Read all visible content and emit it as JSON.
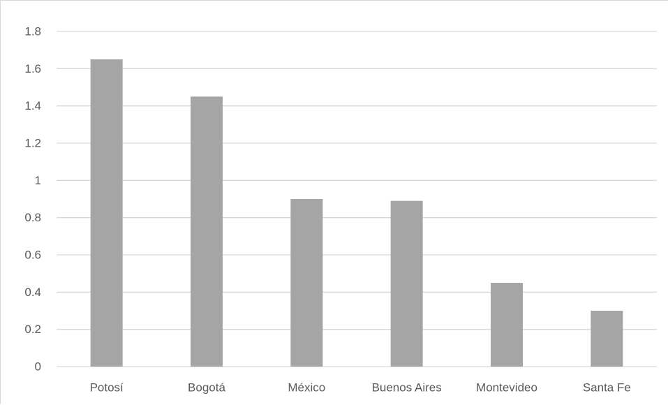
{
  "chart_data": {
    "type": "bar",
    "categories": [
      "Potosí",
      "Bogotá",
      "México",
      "Buenos Aires",
      "Montevideo",
      "Santa Fe"
    ],
    "values": [
      1.65,
      1.45,
      0.9,
      0.89,
      0.45,
      0.3
    ],
    "title": "",
    "xlabel": "",
    "ylabel": "",
    "ylim": [
      0,
      1.8
    ],
    "yticks": [
      "0",
      "0.2",
      "0.4",
      "0.6",
      "0.8",
      "1",
      "1.2",
      "1.4",
      "1.6",
      "1.8"
    ],
    "grid": true,
    "legend": "none",
    "colors": {
      "bar": "#a5a5a5",
      "gridline": "#d9d9d9",
      "axis_line": "#d9d9d9",
      "tick_text": "#595959"
    }
  }
}
